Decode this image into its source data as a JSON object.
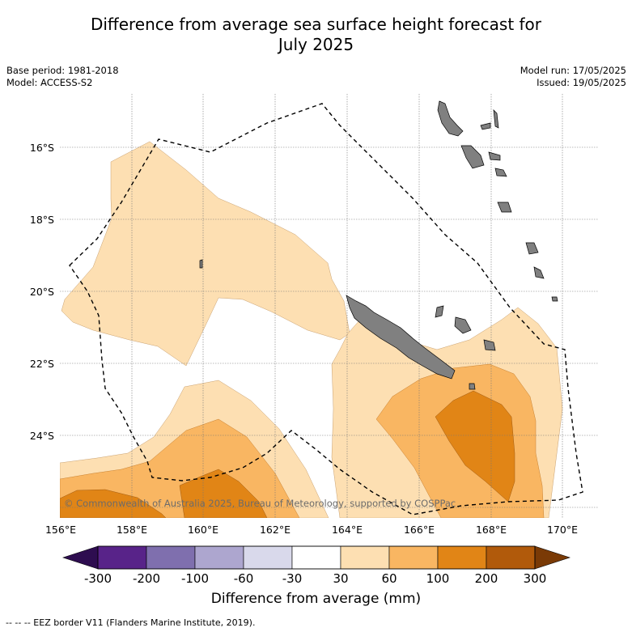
{
  "title_line1": "Difference from average sea surface height forecast for",
  "title_line2": "July 2025",
  "base_period": "Base period: 1981-2018",
  "model": "Model: ACCESS-S2",
  "model_run": "Model run: 17/05/2025",
  "issued": "Issued: 19/05/2025",
  "lat_labels": [
    "16°S",
    "18°S",
    "20°S",
    "22°S",
    "24°S"
  ],
  "lon_labels": [
    "156°E",
    "158°E",
    "160°E",
    "162°E",
    "164°E",
    "166°E",
    "168°E",
    "170°E"
  ],
  "copyright": "© Commonwealth of Australia 2025, Bureau of Meteorology, supported by COSPPac",
  "colorbar": {
    "ticks": [
      "-300",
      "-200",
      "-100",
      "-60",
      "-30",
      "30",
      "60",
      "100",
      "200",
      "300"
    ],
    "colors": [
      "#582389",
      "#7f6fae",
      "#ada6cf",
      "#d9d9eb",
      "#ffffff",
      "#fddfb2",
      "#f9b662",
      "#e18516",
      "#b15a0b"
    ],
    "under_color": "#2e0d50",
    "over_color": "#7a3a06",
    "label": "Difference from average (mm)"
  },
  "footnote": "--  --  -- EEZ border V11 (Flanders Marine Institute, 2019)."
}
